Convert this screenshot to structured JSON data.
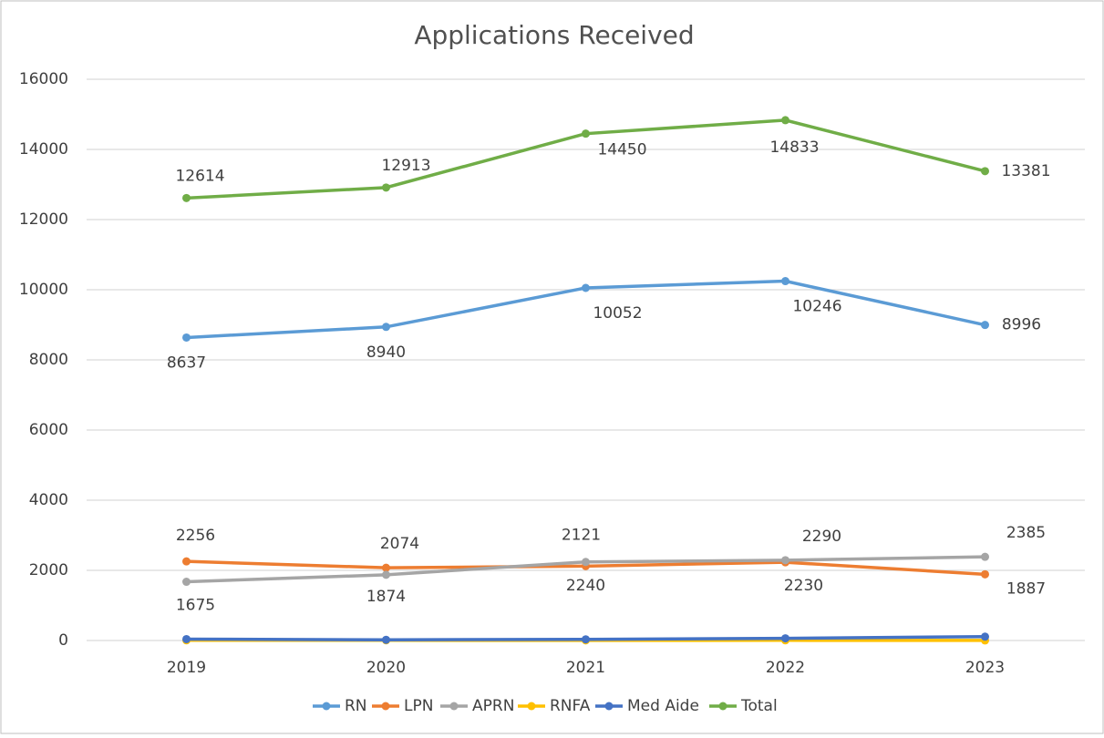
{
  "chart_data": {
    "type": "line",
    "title": "Applications Received",
    "categories": [
      "2019",
      "2020",
      "2021",
      "2022",
      "2023"
    ],
    "series": [
      {
        "name": "RN",
        "color": "#5b9bd5",
        "values": [
          8637,
          8940,
          10052,
          10246,
          8996
        ]
      },
      {
        "name": "LPN",
        "color": "#ed7d31",
        "values": [
          2256,
          2074,
          2121,
          2230,
          1887
        ]
      },
      {
        "name": "APRN",
        "color": "#a5a5a5",
        "values": [
          1675,
          1874,
          2240,
          2290,
          2385
        ]
      },
      {
        "name": "RNFA",
        "color": "#ffc000",
        "values": [
          6,
          5,
          4,
          5,
          3
        ]
      },
      {
        "name": "Med Aide",
        "color": "#4472c4",
        "values": [
          40,
          20,
          33,
          62,
          110
        ]
      },
      {
        "name": "Total",
        "color": "#70ad47",
        "values": [
          12614,
          12913,
          14450,
          14833,
          13381
        ]
      }
    ],
    "labeled_series": [
      0,
      1,
      2,
      5
    ],
    "ylim": [
      0,
      16000
    ],
    "yticks": [
      0,
      2000,
      4000,
      6000,
      8000,
      10000,
      12000,
      14000,
      16000
    ],
    "grid": true,
    "legend": "bottom"
  }
}
